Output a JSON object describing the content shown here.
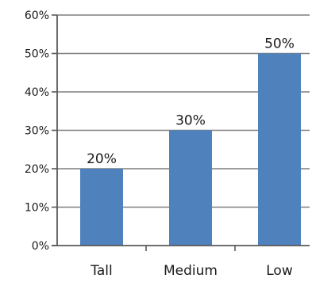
{
  "chart_data": {
    "type": "bar",
    "categories": [
      "Tall",
      "Medium",
      "Low"
    ],
    "values": [
      20,
      30,
      50
    ],
    "data_labels": [
      "20%",
      "30%",
      "50%"
    ],
    "y_ticks": [
      0,
      10,
      20,
      30,
      40,
      50,
      60
    ],
    "y_tick_labels": [
      "0%",
      "10%",
      "20%",
      "30%",
      "40%",
      "50%",
      "60%"
    ],
    "ylim": [
      0,
      60
    ],
    "y_format": "percent",
    "grid": true,
    "legend": "none",
    "title": "",
    "xlabel": "",
    "ylabel": "",
    "colors": {
      "bar": "#4f81bd",
      "gridline": "#7f7f7f",
      "axis": "#595959",
      "text": "#1a1a1a"
    }
  }
}
